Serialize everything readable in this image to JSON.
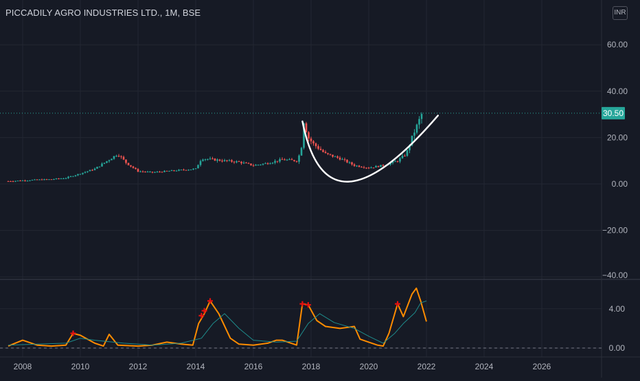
{
  "header": {
    "title": "PICCADILY AGRO INDUSTRIES LTD., 1M, BSE",
    "currency": "INR"
  },
  "price_badge": {
    "value": "30.50",
    "color": "#26a69a"
  },
  "colors": {
    "background": "#161a25",
    "up": "#26a69a",
    "down": "#ef5350",
    "indicator": "#ff8c00",
    "signal": "#1e8c8c",
    "marker": "#e51010",
    "curve": "#ffffff"
  },
  "chart_data": [
    {
      "type": "candlestick",
      "title": "PICCADILY AGRO INDUSTRIES LTD., 1M, BSE",
      "y_ticks": [
        60,
        40,
        20,
        0,
        -20,
        -40
      ],
      "y_tick_labels": [
        "60.00",
        "40.00",
        "20.00",
        "0.00",
        "−20.00",
        "−40.00"
      ],
      "ylim": [
        -40,
        72
      ],
      "last_price": 30.5,
      "x_ticks": [
        2008,
        2010,
        2012,
        2014,
        2016,
        2018,
        2020,
        2022,
        2024,
        2026
      ],
      "x_tick_labels": [
        "2008",
        "2010",
        "2012",
        "2014",
        "2016",
        "2018",
        "2020",
        "2022",
        "2024",
        "2026"
      ],
      "xlim": [
        2007.5,
        2028.2
      ],
      "price_path": [
        [
          2007.5,
          1.2
        ],
        [
          2008.0,
          1.5
        ],
        [
          2008.5,
          1.8
        ],
        [
          2009.0,
          2.0
        ],
        [
          2009.5,
          2.6
        ],
        [
          2010.0,
          4.5
        ],
        [
          2010.5,
          6.5
        ],
        [
          2011.0,
          10.5
        ],
        [
          2011.3,
          13.0
        ],
        [
          2011.6,
          9.0
        ],
        [
          2012.0,
          5.5
        ],
        [
          2012.5,
          5.0
        ],
        [
          2013.0,
          5.5
        ],
        [
          2013.5,
          6.0
        ],
        [
          2014.0,
          6.5
        ],
        [
          2014.2,
          11.0
        ],
        [
          2014.6,
          10.5
        ],
        [
          2015.0,
          10.0
        ],
        [
          2015.5,
          9.5
        ],
        [
          2016.0,
          8.0
        ],
        [
          2016.5,
          9.0
        ],
        [
          2017.0,
          10.5
        ],
        [
          2017.5,
          10.0
        ],
        [
          2017.65,
          14.0
        ],
        [
          2017.75,
          27.0
        ],
        [
          2017.9,
          20.0
        ],
        [
          2018.1,
          17.0
        ],
        [
          2018.5,
          13.0
        ],
        [
          2019.0,
          11.0
        ],
        [
          2019.5,
          8.0
        ],
        [
          2020.0,
          7.0
        ],
        [
          2020.5,
          8.0
        ],
        [
          2021.0,
          10.0
        ],
        [
          2021.3,
          13.0
        ],
        [
          2021.5,
          20.0
        ],
        [
          2021.7,
          26.0
        ],
        [
          2021.85,
          30.5
        ]
      ],
      "cup_curve_points": [
        [
          2017.7,
          27.0
        ],
        [
          2019.3,
          1.0
        ],
        [
          2022.4,
          29.5
        ]
      ]
    },
    {
      "type": "line",
      "y_ticks": [
        0,
        4
      ],
      "y_tick_labels": [
        "0.00",
        "4.00"
      ],
      "ylim": [
        -0.5,
        6.7
      ],
      "series": [
        {
          "values": [
            [
              2007.5,
              0.2
            ],
            [
              2008.0,
              0.8
            ],
            [
              2008.5,
              0.3
            ],
            [
              2009.0,
              0.2
            ],
            [
              2009.5,
              0.3
            ],
            [
              2009.75,
              1.5
            ],
            [
              2010.0,
              1.3
            ],
            [
              2010.5,
              0.5
            ],
            [
              2010.8,
              0.2
            ],
            [
              2011.0,
              1.4
            ],
            [
              2011.3,
              0.3
            ],
            [
              2012.0,
              0.2
            ],
            [
              2012.5,
              0.3
            ],
            [
              2013.0,
              0.6
            ],
            [
              2013.5,
              0.4
            ],
            [
              2013.9,
              0.3
            ],
            [
              2014.1,
              2.5
            ],
            [
              2014.3,
              3.5
            ],
            [
              2014.5,
              4.8
            ],
            [
              2014.8,
              3.5
            ],
            [
              2015.2,
              1.0
            ],
            [
              2015.5,
              0.4
            ],
            [
              2016.0,
              0.3
            ],
            [
              2016.5,
              0.5
            ],
            [
              2016.8,
              0.8
            ],
            [
              2017.0,
              0.8
            ],
            [
              2017.5,
              0.3
            ],
            [
              2017.7,
              4.5
            ],
            [
              2017.9,
              4.4
            ],
            [
              2018.2,
              2.8
            ],
            [
              2018.5,
              2.2
            ],
            [
              2019.0,
              2.0
            ],
            [
              2019.5,
              2.2
            ],
            [
              2019.7,
              0.9
            ],
            [
              2020.0,
              0.6
            ],
            [
              2020.3,
              0.3
            ],
            [
              2020.5,
              0.2
            ],
            [
              2020.7,
              1.5
            ],
            [
              2021.0,
              4.5
            ],
            [
              2021.2,
              3.2
            ],
            [
              2021.5,
              5.5
            ],
            [
              2021.65,
              6.1
            ],
            [
              2021.8,
              4.8
            ],
            [
              2022.0,
              2.7
            ]
          ]
        },
        {
          "values": [
            [
              2007.5,
              0.3
            ],
            [
              2008.5,
              0.4
            ],
            [
              2009.5,
              0.5
            ],
            [
              2010.0,
              1.0
            ],
            [
              2010.5,
              0.8
            ],
            [
              2011.5,
              0.5
            ],
            [
              2012.5,
              0.3
            ],
            [
              2013.5,
              0.5
            ],
            [
              2014.2,
              1.0
            ],
            [
              2014.6,
              2.5
            ],
            [
              2015.0,
              3.5
            ],
            [
              2015.5,
              2.0
            ],
            [
              2016.0,
              0.8
            ],
            [
              2016.8,
              0.6
            ],
            [
              2017.5,
              0.7
            ],
            [
              2017.9,
              2.5
            ],
            [
              2018.3,
              3.5
            ],
            [
              2018.8,
              2.6
            ],
            [
              2019.5,
              2.0
            ],
            [
              2020.0,
              1.2
            ],
            [
              2020.5,
              0.5
            ],
            [
              2020.9,
              1.5
            ],
            [
              2021.2,
              2.5
            ],
            [
              2021.6,
              3.6
            ],
            [
              2021.8,
              4.6
            ],
            [
              2022.0,
              4.8
            ]
          ]
        }
      ],
      "markers": [
        [
          2009.75,
          1.5
        ],
        [
          2014.2,
          3.3
        ],
        [
          2014.3,
          3.8
        ],
        [
          2014.5,
          4.8
        ],
        [
          2017.7,
          4.5
        ],
        [
          2017.9,
          4.4
        ],
        [
          2021.0,
          4.5
        ]
      ],
      "baseline": 0
    }
  ]
}
